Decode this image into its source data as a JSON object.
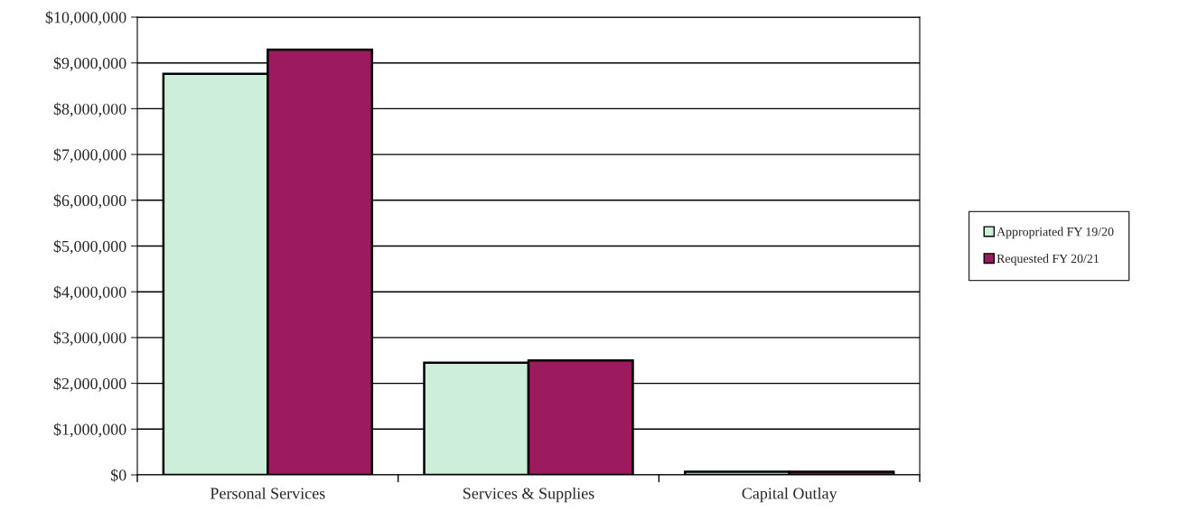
{
  "chart_data": {
    "type": "bar",
    "categories": [
      "Personal Services",
      "Services & Supplies",
      "Capital Outlay"
    ],
    "series": [
      {
        "name": "Appropriated FY 19/20",
        "color": "#cdeed8",
        "values": [
          8760000,
          2450000,
          70000
        ]
      },
      {
        "name": "Requested FY 20/21",
        "color": "#9b1b5e",
        "values": [
          9290000,
          2500000,
          70000
        ]
      }
    ],
    "ylim": [
      0,
      10000000
    ],
    "yticks": [
      {
        "value": 0,
        "label": "$0"
      },
      {
        "value": 1000000,
        "label": "$1,000,000"
      },
      {
        "value": 2000000,
        "label": "$2,000,000"
      },
      {
        "value": 3000000,
        "label": "$3,000,000"
      },
      {
        "value": 4000000,
        "label": "$4,000,000"
      },
      {
        "value": 5000000,
        "label": "$5,000,000"
      },
      {
        "value": 6000000,
        "label": "$6,000,000"
      },
      {
        "value": 7000000,
        "label": "$7,000,000"
      },
      {
        "value": 8000000,
        "label": "$8,000,000"
      },
      {
        "value": 9000000,
        "label": "$9,000,000"
      },
      {
        "value": 10000000,
        "label": "$10,000,000"
      }
    ],
    "grid": "y",
    "legend": "right"
  }
}
